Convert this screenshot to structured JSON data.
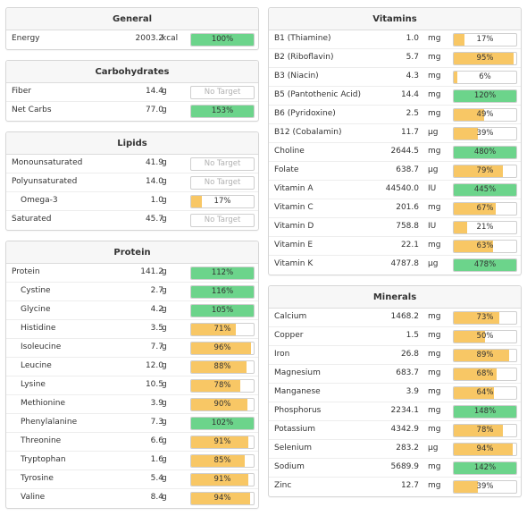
{
  "colors": {
    "green": "#6cd48b",
    "yellow": "#f8c765"
  },
  "left_panels": [
    {
      "title": "General",
      "rows": [
        {
          "name": "Energy",
          "amount": "2003.2",
          "unit": "kcal",
          "pct": "100%",
          "value": 100,
          "color": "green"
        }
      ]
    },
    {
      "title": "Carbohydrates",
      "rows": [
        {
          "name": "Fiber",
          "amount": "14.4",
          "unit": "g",
          "pct": "No Target",
          "value": 0,
          "color": "none"
        },
        {
          "name": "Net Carbs",
          "amount": "77.0",
          "unit": "g",
          "pct": "153%",
          "value": 153,
          "color": "green"
        }
      ]
    },
    {
      "title": "Lipids",
      "rows": [
        {
          "name": "Monounsaturated",
          "amount": "41.9",
          "unit": "g",
          "pct": "No Target",
          "value": 0,
          "color": "none"
        },
        {
          "name": "Polyunsaturated",
          "amount": "14.0",
          "unit": "g",
          "pct": "No Target",
          "value": 0,
          "color": "none"
        },
        {
          "name": "Omega-3",
          "amount": "1.0",
          "unit": "g",
          "pct": "17%",
          "value": 17,
          "color": "yellow",
          "sub": true
        },
        {
          "name": "Saturated",
          "amount": "45.7",
          "unit": "g",
          "pct": "No Target",
          "value": 0,
          "color": "none"
        }
      ]
    },
    {
      "title": "Protein",
      "rows": [
        {
          "name": "Protein",
          "amount": "141.2",
          "unit": "g",
          "pct": "112%",
          "value": 112,
          "color": "green"
        },
        {
          "name": "Cystine",
          "amount": "2.7",
          "unit": "g",
          "pct": "116%",
          "value": 116,
          "color": "green",
          "sub": true
        },
        {
          "name": "Glycine",
          "amount": "4.2",
          "unit": "g",
          "pct": "105%",
          "value": 105,
          "color": "green",
          "sub": true
        },
        {
          "name": "Histidine",
          "amount": "3.5",
          "unit": "g",
          "pct": "71%",
          "value": 71,
          "color": "yellow",
          "sub": true
        },
        {
          "name": "Isoleucine",
          "amount": "7.7",
          "unit": "g",
          "pct": "96%",
          "value": 96,
          "color": "yellow",
          "sub": true
        },
        {
          "name": "Leucine",
          "amount": "12.0",
          "unit": "g",
          "pct": "88%",
          "value": 88,
          "color": "yellow",
          "sub": true
        },
        {
          "name": "Lysine",
          "amount": "10.5",
          "unit": "g",
          "pct": "78%",
          "value": 78,
          "color": "yellow",
          "sub": true
        },
        {
          "name": "Methionine",
          "amount": "3.9",
          "unit": "g",
          "pct": "90%",
          "value": 90,
          "color": "yellow",
          "sub": true
        },
        {
          "name": "Phenylalanine",
          "amount": "7.3",
          "unit": "g",
          "pct": "102%",
          "value": 102,
          "color": "green",
          "sub": true
        },
        {
          "name": "Threonine",
          "amount": "6.6",
          "unit": "g",
          "pct": "91%",
          "value": 91,
          "color": "yellow",
          "sub": true
        },
        {
          "name": "Tryptophan",
          "amount": "1.6",
          "unit": "g",
          "pct": "85%",
          "value": 85,
          "color": "yellow",
          "sub": true
        },
        {
          "name": "Tyrosine",
          "amount": "5.4",
          "unit": "g",
          "pct": "91%",
          "value": 91,
          "color": "yellow",
          "sub": true
        },
        {
          "name": "Valine",
          "amount": "8.4",
          "unit": "g",
          "pct": "94%",
          "value": 94,
          "color": "yellow",
          "sub": true
        }
      ]
    }
  ],
  "right_panels": [
    {
      "title": "Vitamins",
      "rows": [
        {
          "name": "B1 (Thiamine)",
          "amount": "1.0",
          "unit": "mg",
          "pct": "17%",
          "value": 17,
          "color": "yellow"
        },
        {
          "name": "B2 (Riboflavin)",
          "amount": "5.7",
          "unit": "mg",
          "pct": "95%",
          "value": 95,
          "color": "yellow"
        },
        {
          "name": "B3 (Niacin)",
          "amount": "4.3",
          "unit": "mg",
          "pct": "6%",
          "value": 6,
          "color": "yellow"
        },
        {
          "name": "B5 (Pantothenic Acid)",
          "amount": "14.4",
          "unit": "mg",
          "pct": "120%",
          "value": 120,
          "color": "green"
        },
        {
          "name": "B6 (Pyridoxine)",
          "amount": "2.5",
          "unit": "mg",
          "pct": "49%",
          "value": 49,
          "color": "yellow"
        },
        {
          "name": "B12 (Cobalamin)",
          "amount": "11.7",
          "unit": "µg",
          "pct": "39%",
          "value": 39,
          "color": "yellow"
        },
        {
          "name": "Choline",
          "amount": "2644.5",
          "unit": "mg",
          "pct": "480%",
          "value": 480,
          "color": "green"
        },
        {
          "name": "Folate",
          "amount": "638.7",
          "unit": "µg",
          "pct": "79%",
          "value": 79,
          "color": "yellow"
        },
        {
          "name": "Vitamin A",
          "amount": "44540.0",
          "unit": "IU",
          "pct": "445%",
          "value": 445,
          "color": "green"
        },
        {
          "name": "Vitamin C",
          "amount": "201.6",
          "unit": "mg",
          "pct": "67%",
          "value": 67,
          "color": "yellow"
        },
        {
          "name": "Vitamin D",
          "amount": "758.8",
          "unit": "IU",
          "pct": "21%",
          "value": 21,
          "color": "yellow"
        },
        {
          "name": "Vitamin E",
          "amount": "22.1",
          "unit": "mg",
          "pct": "63%",
          "value": 63,
          "color": "yellow"
        },
        {
          "name": "Vitamin K",
          "amount": "4787.8",
          "unit": "µg",
          "pct": "478%",
          "value": 478,
          "color": "green"
        }
      ]
    },
    {
      "title": "Minerals",
      "rows": [
        {
          "name": "Calcium",
          "amount": "1468.2",
          "unit": "mg",
          "pct": "73%",
          "value": 73,
          "color": "yellow"
        },
        {
          "name": "Copper",
          "amount": "1.5",
          "unit": "mg",
          "pct": "50%",
          "value": 50,
          "color": "yellow"
        },
        {
          "name": "Iron",
          "amount": "26.8",
          "unit": "mg",
          "pct": "89%",
          "value": 89,
          "color": "yellow"
        },
        {
          "name": "Magnesium",
          "amount": "683.7",
          "unit": "mg",
          "pct": "68%",
          "value": 68,
          "color": "yellow"
        },
        {
          "name": "Manganese",
          "amount": "3.9",
          "unit": "mg",
          "pct": "64%",
          "value": 64,
          "color": "yellow"
        },
        {
          "name": "Phosphorus",
          "amount": "2234.1",
          "unit": "mg",
          "pct": "148%",
          "value": 148,
          "color": "green"
        },
        {
          "name": "Potassium",
          "amount": "4342.9",
          "unit": "mg",
          "pct": "78%",
          "value": 78,
          "color": "yellow"
        },
        {
          "name": "Selenium",
          "amount": "283.2",
          "unit": "µg",
          "pct": "94%",
          "value": 94,
          "color": "yellow"
        },
        {
          "name": "Sodium",
          "amount": "5689.9",
          "unit": "mg",
          "pct": "142%",
          "value": 142,
          "color": "green"
        },
        {
          "name": "Zinc",
          "amount": "12.7",
          "unit": "mg",
          "pct": "39%",
          "value": 39,
          "color": "yellow"
        }
      ]
    }
  ]
}
